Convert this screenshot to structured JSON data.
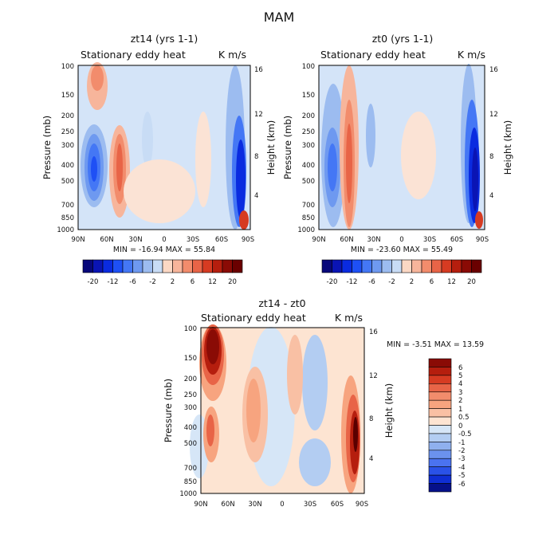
{
  "figure": {
    "title": "MAM"
  },
  "chart_data": [
    {
      "type": "heatmap",
      "title": "zt14 (yrs 1-1)",
      "subtitle_left": "Stationary eddy heat",
      "subtitle_right": "K m/s",
      "xlabel": "",
      "ylabel": "Pressure (mb)",
      "ylabel_right": "Height (km)",
      "x_ticks": [
        "90N",
        "60N",
        "30N",
        "0",
        "30S",
        "60S",
        "90S"
      ],
      "y_ticks": [
        "100",
        "150",
        "200",
        "250",
        "300",
        "400",
        "500",
        "700",
        "850",
        "1000"
      ],
      "y2_ticks": [
        "16",
        "12",
        "8",
        "4"
      ],
      "stats": "MIN = -16.94   MAX =  55.84",
      "colorbar": {
        "labels": [
          "-20",
          "-12",
          "-6",
          "-2",
          "2",
          "6",
          "12",
          "20"
        ],
        "levels": [
          -20,
          -16,
          -12,
          -8,
          -6,
          -4,
          -2,
          0,
          2,
          4,
          6,
          8,
          12,
          16,
          20
        ],
        "colors": [
          "#08087a",
          "#0a14b4",
          "#0a2be0",
          "#1e50f5",
          "#4477f5",
          "#6e99f0",
          "#9cbcf0",
          "#c8dcf5",
          "#fbd8c4",
          "#f7b59b",
          "#f28c6c",
          "#e86447",
          "#d63b22",
          "#b51e0e",
          "#8a0b05",
          "#6a0000"
        ]
      },
      "features": [
        {
          "name": "polar-upper-positive",
          "lat": 70,
          "p": [
            100,
            180
          ],
          "value": 8
        },
        {
          "name": "negative-core",
          "lat": 77,
          "p": [
            250,
            700
          ],
          "value": -14
        },
        {
          "name": "positive-core",
          "lat": 50,
          "p": [
            300,
            850
          ],
          "value": 10
        },
        {
          "name": "southern-negative",
          "lat": -82,
          "p": [
            100,
            1000
          ],
          "value": -12
        },
        {
          "name": "southern-surface-positive",
          "lat": -88,
          "p": [
            900,
            1000
          ],
          "value": 20
        }
      ]
    },
    {
      "type": "heatmap",
      "title": "zt0 (yrs 1-1)",
      "subtitle_left": "Stationary eddy heat",
      "subtitle_right": "K m/s",
      "xlabel": "",
      "ylabel": "Pressure (mb)",
      "ylabel_right": "Height (km)",
      "x_ticks": [
        "90N",
        "60N",
        "30N",
        "0",
        "30S",
        "60S",
        "90S"
      ],
      "y_ticks": [
        "100",
        "150",
        "200",
        "250",
        "300",
        "400",
        "500",
        "700",
        "850",
        "1000"
      ],
      "y2_ticks": [
        "16",
        "12",
        "8",
        "4"
      ],
      "stats": "MIN = -23.60   MAX =  55.49",
      "colorbar": {
        "labels": [
          "-20",
          "-12",
          "-6",
          "-2",
          "2",
          "6",
          "12",
          "20"
        ],
        "levels": [
          -20,
          -16,
          -12,
          -8,
          -6,
          -4,
          -2,
          0,
          2,
          4,
          6,
          8,
          12,
          16,
          20
        ],
        "colors": [
          "#08087a",
          "#0a14b4",
          "#0a2be0",
          "#1e50f5",
          "#4477f5",
          "#6e99f0",
          "#9cbcf0",
          "#c8dcf5",
          "#fbd8c4",
          "#f7b59b",
          "#f28c6c",
          "#e86447",
          "#d63b22",
          "#b51e0e",
          "#8a0b05",
          "#6a0000"
        ]
      },
      "features": [
        {
          "name": "negative-core",
          "lat": 78,
          "p": [
            200,
            850
          ],
          "value": -12
        },
        {
          "name": "positive-core",
          "lat": 55,
          "p": [
            100,
            1000
          ],
          "value": 8
        },
        {
          "name": "southern-negative",
          "lat": -82,
          "p": [
            100,
            1000
          ],
          "value": -20
        },
        {
          "name": "southern-surface-positive",
          "lat": -88,
          "p": [
            900,
            1000
          ],
          "value": 20
        }
      ]
    },
    {
      "type": "heatmap",
      "title": "zt14 - zt0",
      "subtitle_left": "Stationary eddy heat",
      "subtitle_right": "K m/s",
      "xlabel": "",
      "ylabel": "Pressure (mb)",
      "ylabel_right": "Height (km)",
      "x_ticks": [
        "90N",
        "60N",
        "30N",
        "0",
        "30S",
        "60S",
        "90S"
      ],
      "y_ticks": [
        "100",
        "150",
        "200",
        "250",
        "300",
        "400",
        "500",
        "700",
        "850",
        "1000"
      ],
      "y2_ticks": [
        "16",
        "12",
        "8",
        "4"
      ],
      "stats": "MIN =  -3.51   MAX =  13.59",
      "colorbar": {
        "labels": [
          "6",
          "5",
          "4",
          "3",
          "2",
          "1",
          "0.5",
          "0",
          "-0.5",
          "-1",
          "-2",
          "-3",
          "-4",
          "-5",
          "-6"
        ],
        "levels": [
          6,
          5,
          4,
          3,
          2,
          1,
          0.5,
          0,
          -0.5,
          -1,
          -2,
          -3,
          -4,
          -5,
          -6
        ],
        "colors": [
          "#8a0b05",
          "#b51e0e",
          "#d63b22",
          "#e86447",
          "#f28c6c",
          "#f7a47f",
          "#f9c0a4",
          "#fde4d2",
          "#d6e6f7",
          "#b3cdf2",
          "#8fb0ee",
          "#6b92ee",
          "#4a73f0",
          "#2a52e8",
          "#0f2ed4",
          "#06108a"
        ]
      },
      "features": [
        {
          "name": "polar-upper-positive",
          "lat": 75,
          "p": [
            100,
            250
          ],
          "value": 6
        },
        {
          "name": "polar-column-positive",
          "lat": 73,
          "p": [
            250,
            700
          ],
          "value": 2
        },
        {
          "name": "midlat-positive",
          "lat": 30,
          "p": [
            200,
            700
          ],
          "value": 2
        },
        {
          "name": "southern-positive-core",
          "lat": -80,
          "p": [
            250,
            1000
          ],
          "value": 6
        }
      ]
    }
  ]
}
